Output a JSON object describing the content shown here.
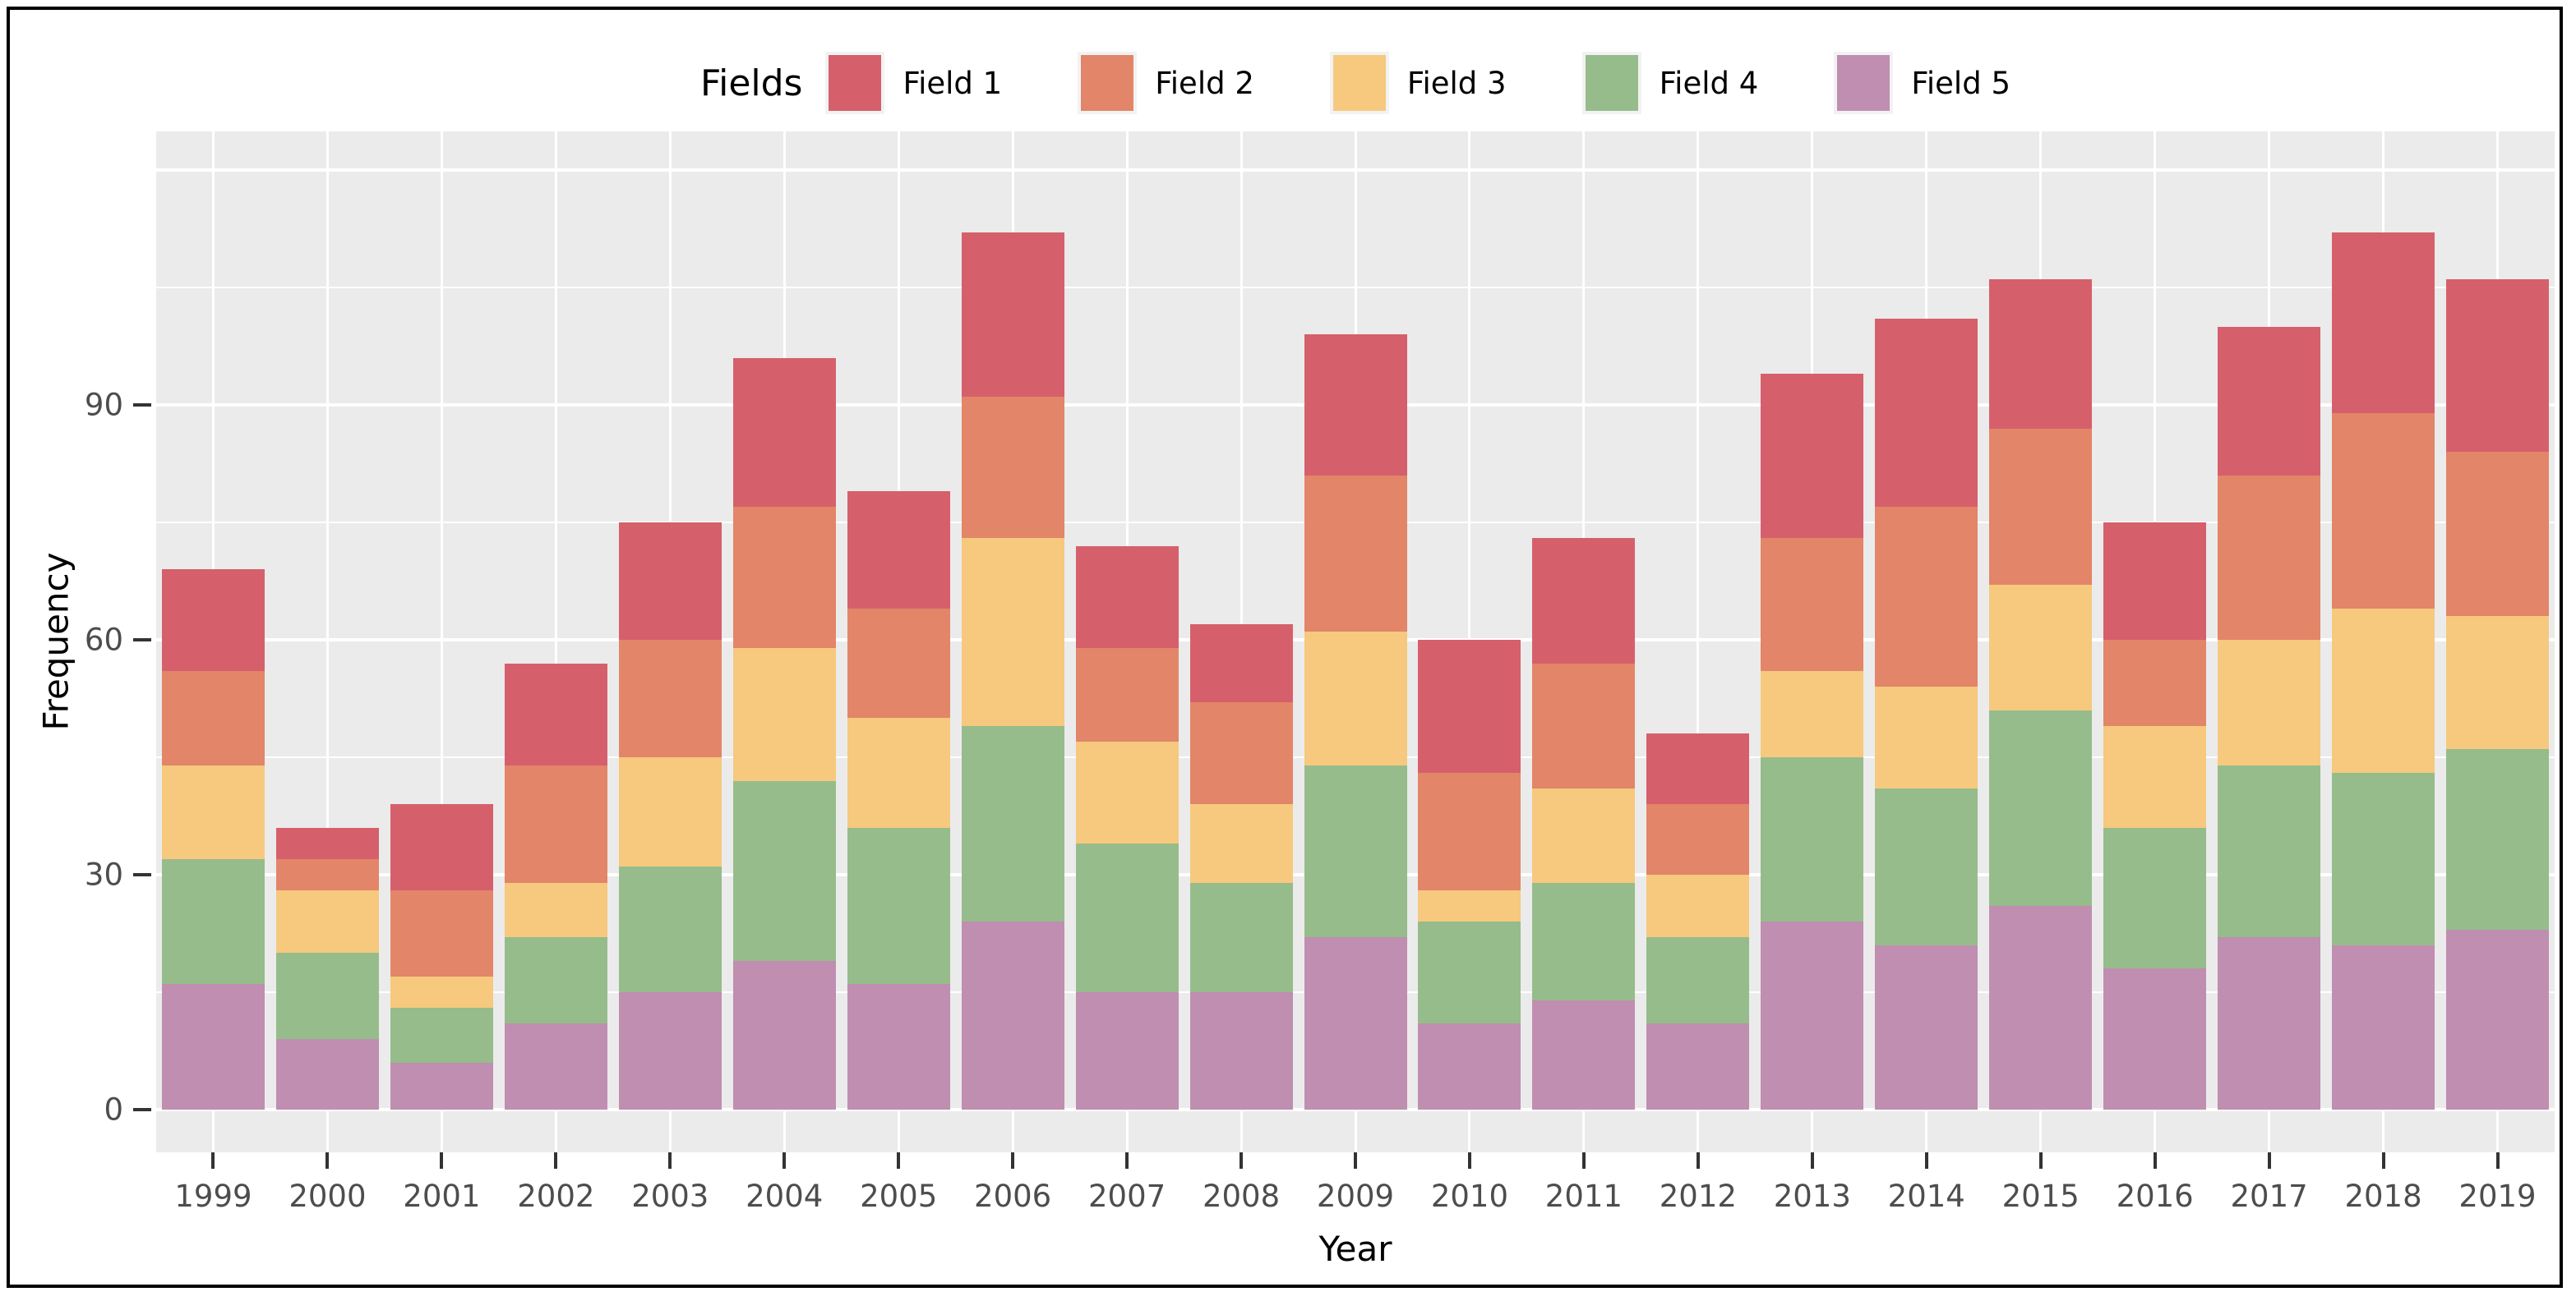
{
  "chart_data": {
    "type": "bar",
    "stacked": true,
    "xlabel": "Year",
    "ylabel": "Frequency",
    "legend_title": "Fields",
    "categories": [
      "1999",
      "2000",
      "2001",
      "2002",
      "2003",
      "2004",
      "2005",
      "2006",
      "2007",
      "2008",
      "2009",
      "2010",
      "2011",
      "2012",
      "2013",
      "2014",
      "2015",
      "2016",
      "2017",
      "2018",
      "2019"
    ],
    "series": [
      {
        "name": "Field 1",
        "color": "#D5606B",
        "values": [
          13,
          4,
          11,
          13,
          15,
          19,
          15,
          21,
          13,
          10,
          18,
          17,
          16,
          9,
          21,
          24,
          19,
          15,
          19,
          23,
          22
        ]
      },
      {
        "name": "Field 2",
        "color": "#E28568",
        "values": [
          12,
          4,
          11,
          15,
          15,
          18,
          14,
          18,
          12,
          13,
          20,
          15,
          16,
          9,
          17,
          23,
          20,
          11,
          21,
          25,
          21
        ]
      },
      {
        "name": "Field 3",
        "color": "#F6C97E",
        "values": [
          12,
          8,
          4,
          7,
          14,
          17,
          14,
          24,
          13,
          10,
          17,
          4,
          12,
          8,
          11,
          13,
          16,
          13,
          16,
          21,
          17
        ]
      },
      {
        "name": "Field 4",
        "color": "#96BC8B",
        "values": [
          16,
          11,
          7,
          11,
          16,
          23,
          20,
          25,
          19,
          14,
          22,
          13,
          15,
          11,
          21,
          20,
          25,
          18,
          22,
          22,
          23
        ]
      },
      {
        "name": "Field 5",
        "color": "#BF8EB0",
        "values": [
          16,
          9,
          6,
          11,
          15,
          19,
          16,
          24,
          15,
          15,
          22,
          11,
          14,
          11,
          24,
          21,
          26,
          18,
          22,
          21,
          23
        ]
      }
    ],
    "stack_order_bottom_to_top": [
      "Field 5",
      "Field 4",
      "Field 3",
      "Field 2",
      "Field 1"
    ],
    "y_tick_values": [
      0,
      30,
      60,
      90
    ],
    "y_tick_labels": [
      "0",
      "30",
      "60",
      "90"
    ],
    "y_major_gridlines": [
      0,
      30,
      60,
      90,
      120
    ],
    "y_minor_gridlines": [
      15,
      45,
      75,
      105
    ],
    "ylim": [
      -5.5,
      125
    ],
    "grid": true,
    "legend_position": "top",
    "totals": [
      69,
      36,
      39,
      57,
      75,
      96,
      79,
      112,
      72,
      62,
      99,
      60,
      73,
      48,
      94,
      101,
      106,
      75,
      100,
      112,
      106
    ]
  },
  "colors": {
    "panel_background": "#EBEBEB",
    "gridline": "#FFFFFF",
    "axis_tick": "#333333",
    "tick_label_text": "#4D4D4D",
    "title_text": "#000000",
    "outer_frame": "#000000",
    "page_background": "#FFFFFF"
  }
}
